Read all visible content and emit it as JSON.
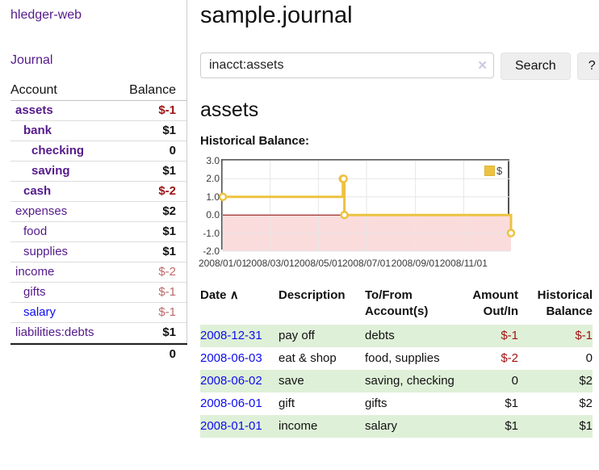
{
  "app": {
    "brand": "hledger-web"
  },
  "sidebar": {
    "nav": {
      "journal": "Journal"
    },
    "accounts": {
      "headers": {
        "account": "Account",
        "balance": "Balance"
      },
      "rows": [
        {
          "name": "assets",
          "balance": "$-1"
        },
        {
          "name": "bank",
          "balance": "$1"
        },
        {
          "name": "checking",
          "balance": "0"
        },
        {
          "name": "saving",
          "balance": "$1"
        },
        {
          "name": "cash",
          "balance": "$-2"
        },
        {
          "name": "expenses",
          "balance": "$2"
        },
        {
          "name": "food",
          "balance": "$1"
        },
        {
          "name": "supplies",
          "balance": "$1"
        },
        {
          "name": "income",
          "balance": "$-2"
        },
        {
          "name": "gifts",
          "balance": "$-1"
        },
        {
          "name": "salary",
          "balance": "$-1"
        },
        {
          "name": "liabilities:debts",
          "balance": "$1"
        }
      ],
      "total": "0"
    }
  },
  "main": {
    "title": "sample.journal",
    "search": {
      "value": "inacct:assets",
      "clear_icon": "✕",
      "button_label": "Search",
      "help_label": "?"
    },
    "account_heading": "assets",
    "chart_title": "Historical Balance:",
    "register": {
      "headers": {
        "date": "Date",
        "sort_indicator": "∧",
        "description": "Description",
        "accounts": "To/From Account(s)",
        "amount": "Amount Out/In",
        "balance": "Historical Balance"
      },
      "rows": [
        {
          "date": "2008-12-31",
          "description": "pay off",
          "accounts": "debts",
          "amount": "$-1",
          "balance": "$-1"
        },
        {
          "date": "2008-06-03",
          "description": "eat & shop",
          "accounts": "food, supplies",
          "amount": "$-2",
          "balance": "0"
        },
        {
          "date": "2008-06-02",
          "description": "save",
          "accounts": "saving, checking",
          "amount": "0",
          "balance": "$2"
        },
        {
          "date": "2008-06-01",
          "description": "gift",
          "accounts": "gifts",
          "amount": "$1",
          "balance": "$2"
        },
        {
          "date": "2008-01-01",
          "description": "income",
          "accounts": "salary",
          "amount": "$1",
          "balance": "$1"
        }
      ]
    }
  },
  "chart_data": {
    "type": "line",
    "step": true,
    "title": "Historical Balance:",
    "xrange": [
      "2008-01-01",
      "2008-12-31"
    ],
    "ylim": [
      -2,
      3
    ],
    "yticks": [
      3,
      2,
      1,
      0,
      -1,
      -2
    ],
    "xticks": [
      "2008/01/01",
      "2008/03/01",
      "2008/05/01",
      "2008/07/01",
      "2008/09/01",
      "2008/11/01"
    ],
    "series": [
      {
        "name": "$",
        "color": "#edc240",
        "points": [
          [
            "2008-01-01",
            1
          ],
          [
            "2008-06-01",
            2
          ],
          [
            "2008-06-02",
            2
          ],
          [
            "2008-06-03",
            0
          ],
          [
            "2008-12-31",
            -1
          ]
        ]
      }
    ],
    "legend_position": "top-right",
    "grid": true,
    "gridline_color": "#e6e6e6",
    "zero_line_color": "#8b0000",
    "negative_region_fill": "#fbdcdc",
    "border_color": "#545454"
  },
  "colors": {
    "visited_link_purple": "#551a8b",
    "link_blue": "#0d0dee",
    "negative_strong": "#9c1313",
    "negative_soft": "#bc6a6a",
    "table_negative": "#a31212",
    "row_shade_green": "#dff0d8",
    "series_gold": "#edc240"
  }
}
